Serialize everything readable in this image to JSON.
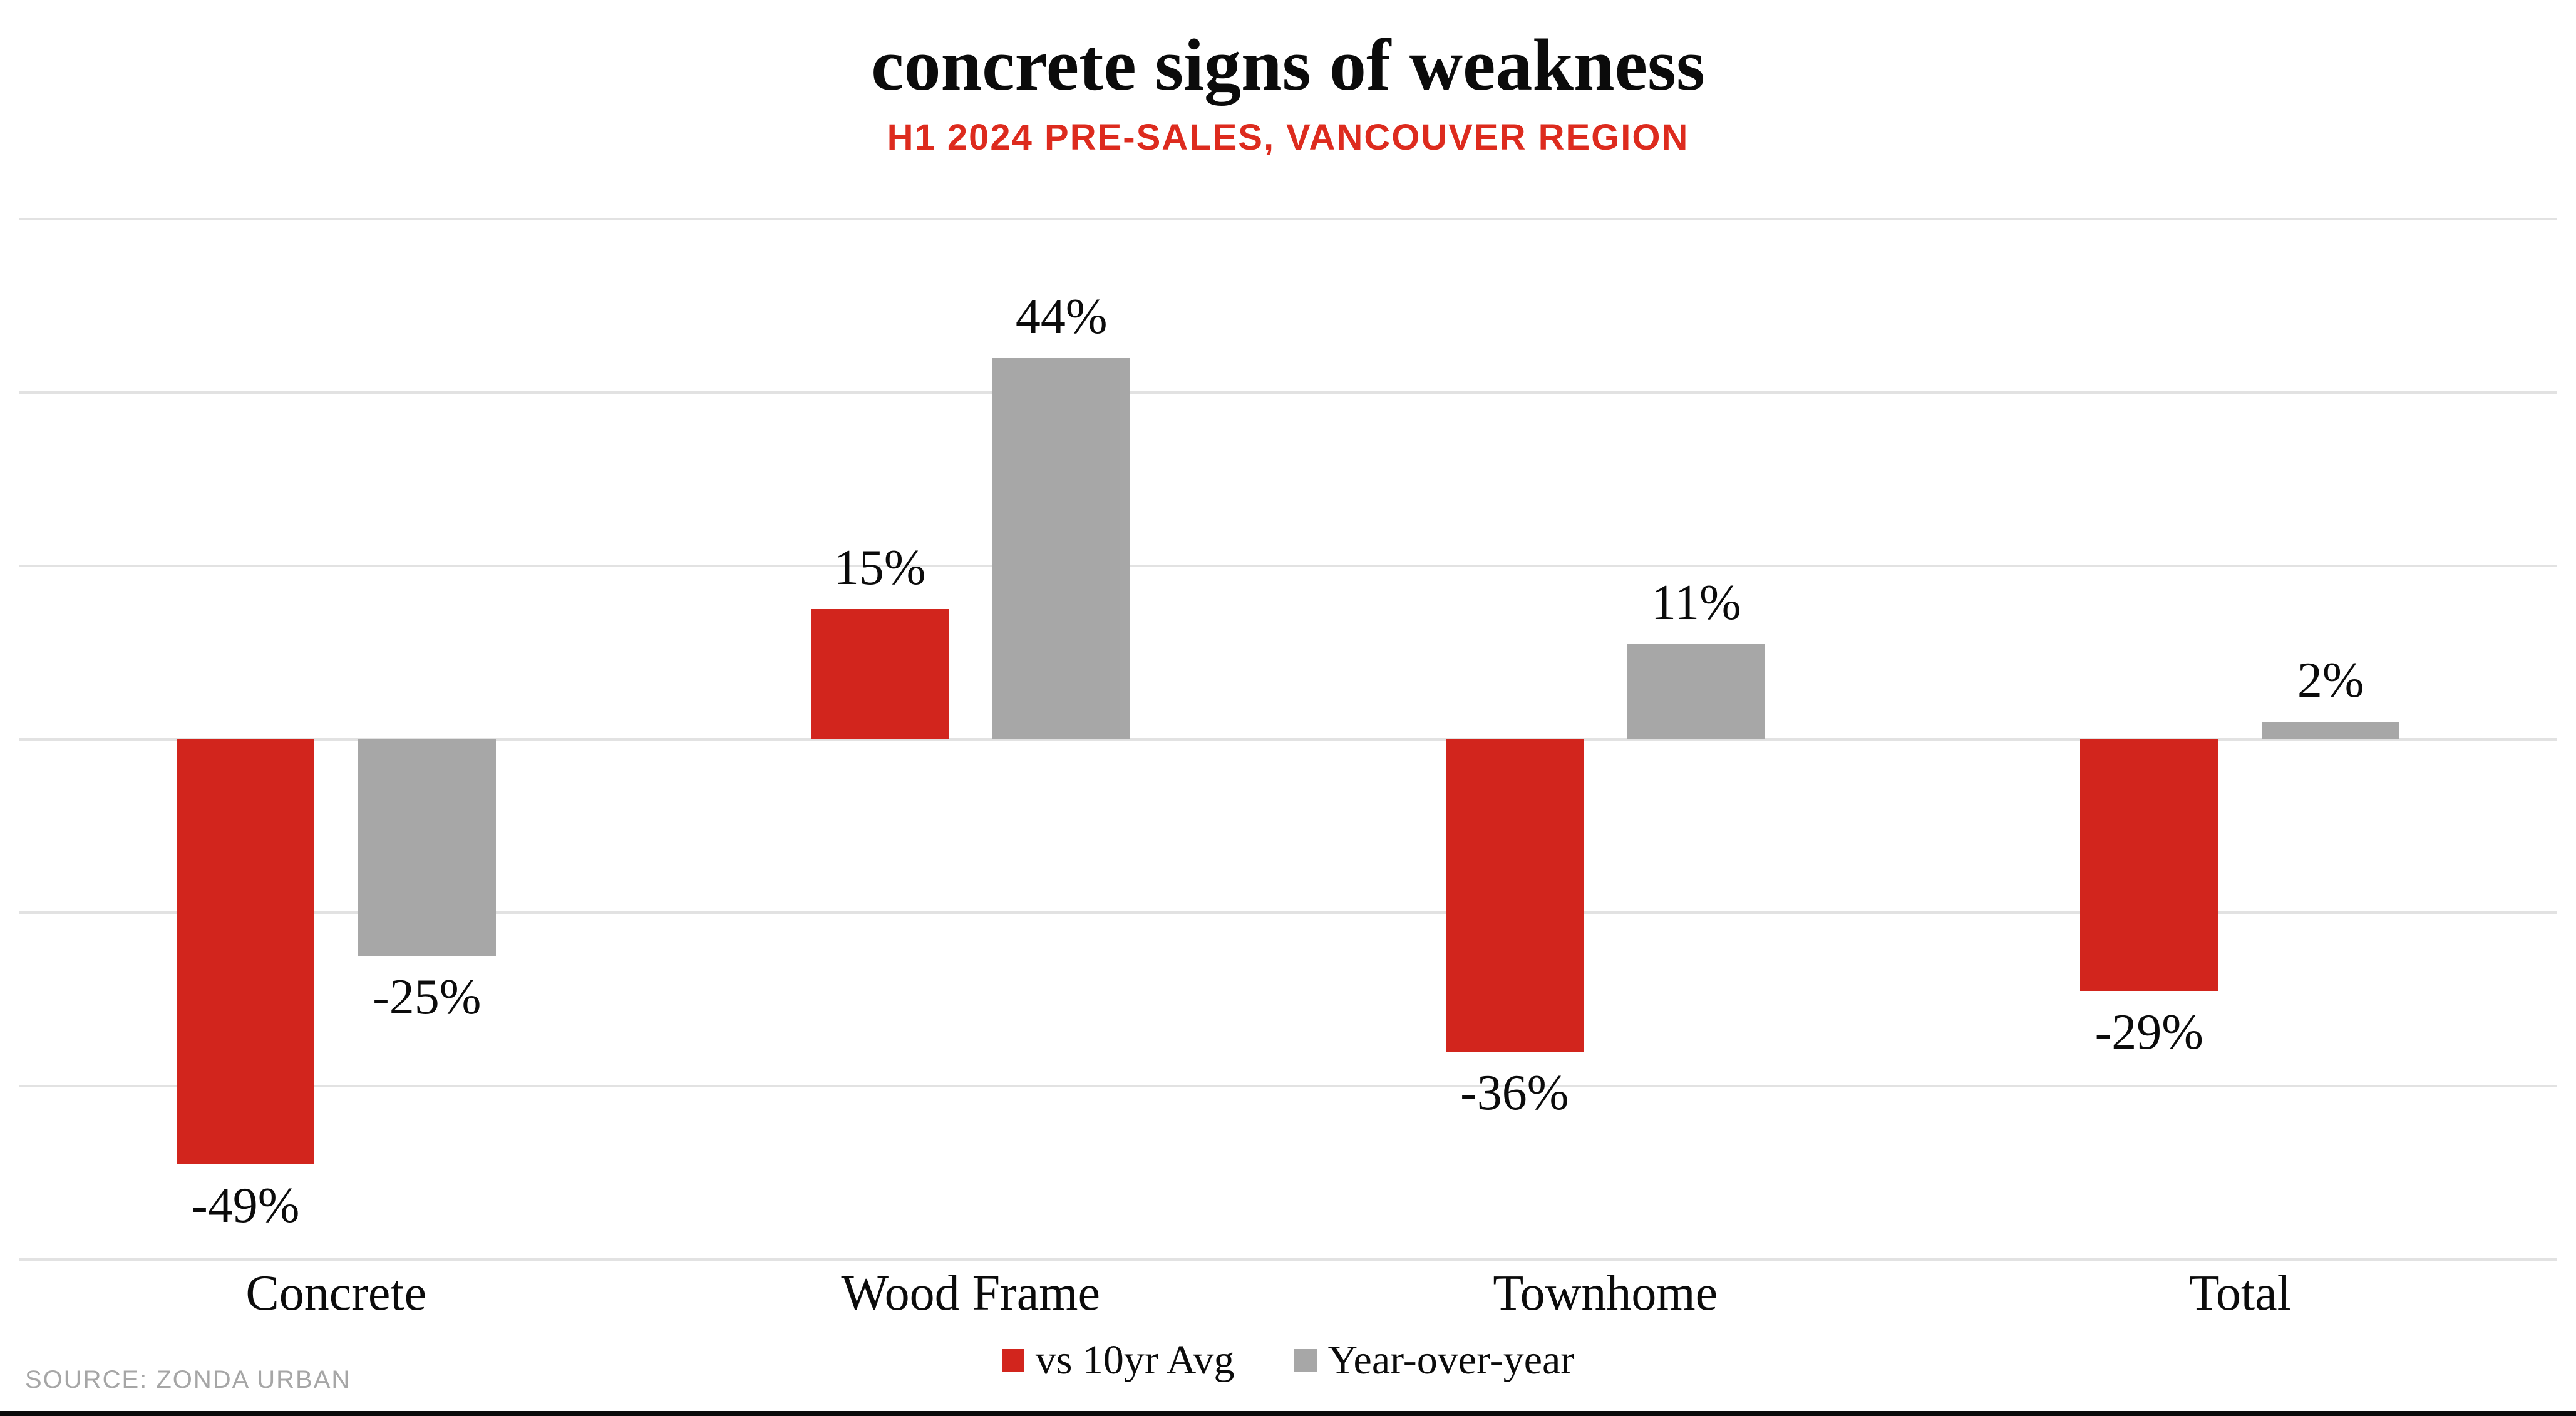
{
  "title": "concrete signs of weakness",
  "subtitle": "H1 2024 PRE-SALES, VANCOUVER REGION",
  "source": "SOURCE: ZONDA URBAN",
  "colors": {
    "bar_red": "#d2251d",
    "bar_gray": "#a7a7a7",
    "subtitle_red": "#dd2b1e",
    "gridline": "#e2e2e2",
    "source_gray": "#a6a6a6",
    "text_black": "#0b0b0b",
    "bottom_rule": "#0a0a0a"
  },
  "legend": {
    "items": [
      {
        "label": "vs 10yr Avg",
        "color": "#d2251d"
      },
      {
        "label": "Year-over-year",
        "color": "#a7a7a7"
      }
    ]
  },
  "chart_data": {
    "type": "bar",
    "title": "concrete signs of weakness",
    "subtitle": "H1 2024 PRE-SALES, VANCOUVER REGION",
    "categories": [
      "Concrete",
      "Wood Frame",
      "Townhome",
      "Total"
    ],
    "series": [
      {
        "name": "vs 10yr Avg",
        "color": "#d2251d",
        "values": [
          -49,
          15,
          -36,
          -29
        ]
      },
      {
        "name": "Year-over-year",
        "color": "#a7a7a7",
        "values": [
          -25,
          44,
          11,
          2
        ]
      }
    ],
    "value_label_format": "{v}%",
    "xlabel": "",
    "ylabel": "",
    "ylim": [
      -60,
      60
    ],
    "grid_step": 20,
    "grid": true,
    "y_axis_labels_visible": false,
    "legend_position": "bottom",
    "source": "SOURCE: ZONDA URBAN"
  }
}
